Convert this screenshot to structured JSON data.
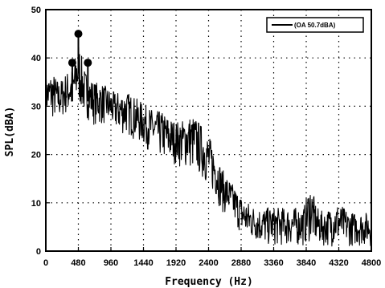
{
  "chart_data": {
    "type": "line",
    "title": "",
    "xlabel": "Frequency (Hz)",
    "ylabel": "SPL(dBA)",
    "xlim": [
      0,
      4800
    ],
    "ylim": [
      0,
      50
    ],
    "x_ticks": [
      "0",
      "480",
      "960",
      "1440",
      "1920",
      "2400",
      "2880",
      "3360",
      "3840",
      "4320",
      "4800"
    ],
    "y_ticks": [
      "0",
      "10",
      "20",
      "30",
      "40",
      "50"
    ],
    "grid": "dotted",
    "legend_position": "top-right",
    "series": [
      {
        "name": "(OA  50.7dBA)",
        "color": "#000000",
        "envelope": [
          [
            0,
            28,
            36
          ],
          [
            100,
            27,
            37
          ],
          [
            200,
            27,
            35
          ],
          [
            300,
            28,
            37
          ],
          [
            400,
            28,
            38
          ],
          [
            480,
            30,
            44
          ],
          [
            560,
            28,
            38
          ],
          [
            640,
            27,
            36
          ],
          [
            720,
            26,
            35
          ],
          [
            800,
            26,
            35
          ],
          [
            900,
            26,
            34
          ],
          [
            1000,
            25,
            33
          ],
          [
            1100,
            24,
            33
          ],
          [
            1200,
            24,
            33
          ],
          [
            1300,
            23,
            32
          ],
          [
            1400,
            22,
            31
          ],
          [
            1500,
            21,
            30
          ],
          [
            1600,
            20,
            29
          ],
          [
            1700,
            19,
            29
          ],
          [
            1800,
            18,
            28
          ],
          [
            1900,
            18,
            27
          ],
          [
            2000,
            17,
            27
          ],
          [
            2100,
            17,
            28
          ],
          [
            2200,
            16,
            28
          ],
          [
            2300,
            15,
            26
          ],
          [
            2400,
            13,
            24
          ],
          [
            2500,
            11,
            21
          ],
          [
            2600,
            8,
            17
          ],
          [
            2700,
            7,
            15
          ],
          [
            2800,
            5,
            13
          ],
          [
            2900,
            3,
            11
          ],
          [
            3000,
            2,
            10
          ],
          [
            3100,
            2,
            9
          ],
          [
            3200,
            1,
            9
          ],
          [
            3300,
            1,
            9
          ],
          [
            3400,
            1,
            9
          ],
          [
            3500,
            1,
            9
          ],
          [
            3600,
            1,
            9
          ],
          [
            3700,
            1,
            9
          ],
          [
            3800,
            1,
            9
          ],
          [
            3900,
            2,
            14
          ],
          [
            4000,
            1,
            9
          ],
          [
            4100,
            1,
            8
          ],
          [
            4200,
            1,
            9
          ],
          [
            4300,
            1,
            10
          ],
          [
            4400,
            1,
            9
          ],
          [
            4500,
            1,
            8
          ],
          [
            4600,
            1,
            8
          ],
          [
            4700,
            1,
            8
          ],
          [
            4800,
            1,
            8
          ]
        ]
      }
    ],
    "markers": [
      {
        "x": 390,
        "y": 39
      },
      {
        "x": 480,
        "y": 45
      },
      {
        "x": 620,
        "y": 39
      }
    ]
  }
}
